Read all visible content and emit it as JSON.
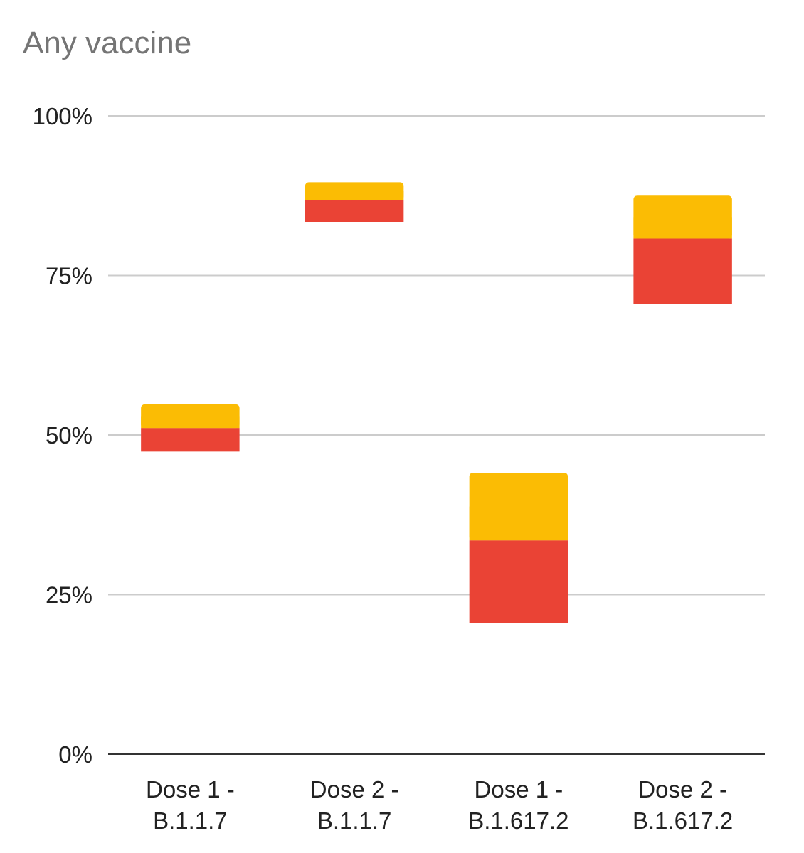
{
  "chart_data": {
    "type": "bar",
    "subtype": "floating-stacked",
    "title": "Any vaccine",
    "xlabel": "",
    "ylabel": "",
    "ylim": [
      0,
      100
    ],
    "y_ticks": [
      "0%",
      "25%",
      "50%",
      "75%",
      "100%"
    ],
    "y_tick_values": [
      0,
      25,
      50,
      75,
      100
    ],
    "grid": true,
    "legend": "none",
    "categories": [
      [
        "Dose 1 -",
        "B.1.1.7"
      ],
      [
        "Dose 2 -",
        "B.1.1.7"
      ],
      [
        "Dose 1 -",
        "B.1.617.2"
      ],
      [
        "Dose 2 -",
        "B.1.617.2"
      ]
    ],
    "segments": [
      {
        "color": "#ea4335",
        "bottoms": [
          47.4,
          83.3,
          20.5,
          70.5
        ],
        "tops": [
          51.1,
          86.8,
          33.5,
          80.8
        ]
      },
      {
        "color": "#fbbc04",
        "bottoms": [
          51.1,
          86.8,
          33.5,
          80.8
        ],
        "tops": [
          54.8,
          89.6,
          44.1,
          87.5
        ]
      }
    ]
  }
}
